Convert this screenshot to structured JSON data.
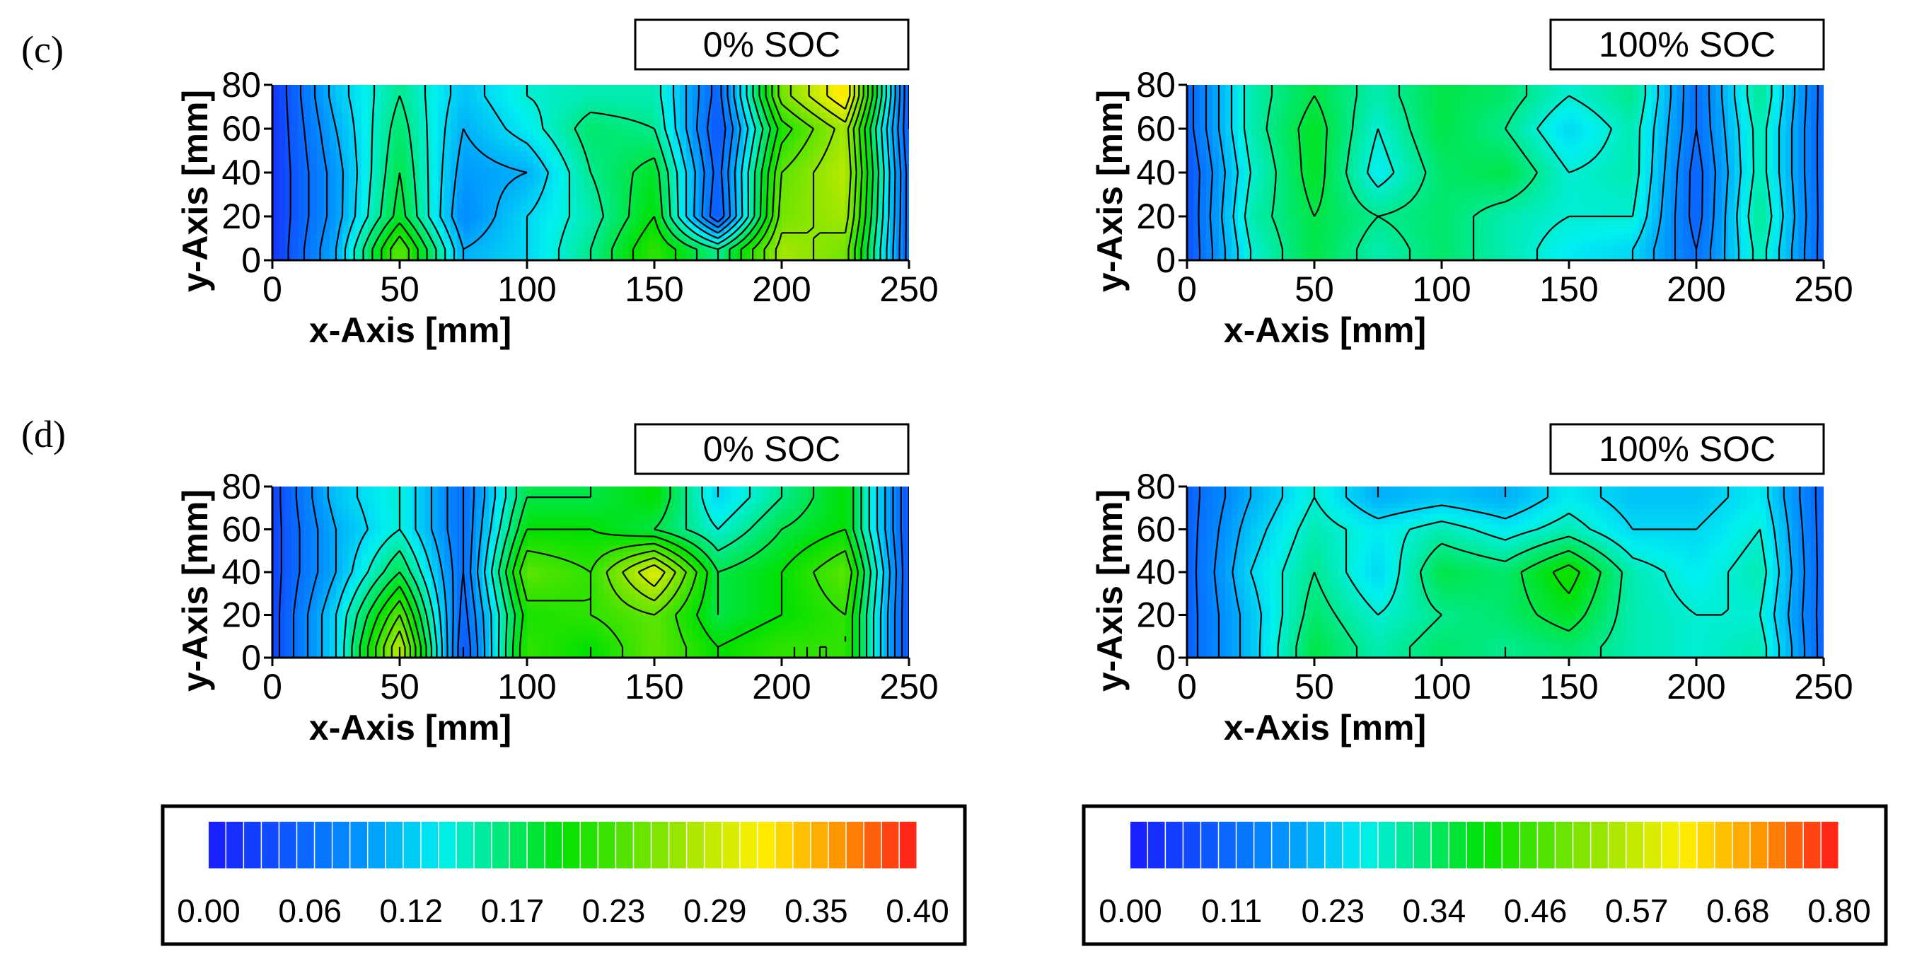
{
  "figure": {
    "panels": [
      {
        "label": "(c)"
      },
      {
        "label": "(d)"
      }
    ],
    "colorbars": [
      {
        "name": "0% SOC scale",
        "min": 0.0,
        "max": 0.4,
        "tick_labels": [
          "0.00",
          "0.06",
          "0.12",
          "0.17",
          "0.23",
          "0.29",
          "0.35",
          "0.40"
        ]
      },
      {
        "name": "100% SOC scale",
        "min": 0.0,
        "max": 0.8,
        "tick_labels": [
          "0.00",
          "0.11",
          "0.23",
          "0.34",
          "0.46",
          "0.57",
          "0.68",
          "0.80"
        ]
      }
    ],
    "colors": {
      "low": "#1a1aff",
      "mid": "#00e000",
      "high": "#ff1a1a",
      "contour": "#000000"
    }
  },
  "chart_data": [
    {
      "type": "heatmap",
      "panel": "(c)",
      "title": "0% SOC",
      "xlabel": "x-Axis [mm]",
      "ylabel": "y-Axis [mm]",
      "xlim": [
        0,
        250
      ],
      "ylim": [
        0,
        80
      ],
      "xticks": [
        "0",
        "50",
        "100",
        "150",
        "200",
        "250"
      ],
      "yticks": [
        "0",
        "20",
        "40",
        "60",
        "80"
      ],
      "x": [
        0,
        25,
        50,
        75,
        100,
        125,
        150,
        175,
        200,
        225,
        250
      ],
      "y": [
        5,
        20,
        40,
        60,
        75
      ],
      "values": [
        [
          0.02,
          0.1,
          0.24,
          0.1,
          0.12,
          0.16,
          0.22,
          0.16,
          0.27,
          0.25,
          0.05
        ],
        [
          0.02,
          0.09,
          0.19,
          0.08,
          0.12,
          0.15,
          0.2,
          0.04,
          0.25,
          0.27,
          0.05
        ],
        [
          0.02,
          0.09,
          0.18,
          0.09,
          0.1,
          0.16,
          0.19,
          0.05,
          0.24,
          0.28,
          0.05
        ],
        [
          0.02,
          0.1,
          0.17,
          0.1,
          0.13,
          0.17,
          0.16,
          0.04,
          0.21,
          0.27,
          0.04
        ],
        [
          0.02,
          0.11,
          0.16,
          0.11,
          0.14,
          0.15,
          0.15,
          0.05,
          0.25,
          0.32,
          0.04
        ]
      ]
    },
    {
      "type": "heatmap",
      "panel": "(c)",
      "title": "100% SOC",
      "xlabel": "x-Axis [mm]",
      "ylabel": "y-Axis [mm]",
      "xlim": [
        0,
        250
      ],
      "ylim": [
        0,
        80
      ],
      "xticks": [
        "0",
        "50",
        "100",
        "150",
        "200",
        "250"
      ],
      "yticks": [
        "0",
        "20",
        "40",
        "60",
        "80"
      ],
      "x": [
        0,
        25,
        50,
        75,
        100,
        125,
        150,
        175,
        200,
        225,
        250
      ],
      "y": [
        5,
        20,
        40,
        60,
        75
      ],
      "values": [
        [
          0.08,
          0.28,
          0.36,
          0.3,
          0.34,
          0.3,
          0.26,
          0.24,
          0.12,
          0.3,
          0.1
        ],
        [
          0.08,
          0.3,
          0.36,
          0.32,
          0.34,
          0.3,
          0.28,
          0.28,
          0.1,
          0.32,
          0.1
        ],
        [
          0.08,
          0.28,
          0.38,
          0.26,
          0.34,
          0.36,
          0.28,
          0.3,
          0.1,
          0.3,
          0.1
        ],
        [
          0.1,
          0.3,
          0.38,
          0.28,
          0.36,
          0.32,
          0.24,
          0.3,
          0.12,
          0.3,
          0.1
        ],
        [
          0.1,
          0.3,
          0.36,
          0.3,
          0.36,
          0.34,
          0.28,
          0.32,
          0.12,
          0.32,
          0.1
        ]
      ]
    },
    {
      "type": "heatmap",
      "panel": "(d)",
      "title": "0% SOC",
      "xlabel": "x-Axis [mm]",
      "ylabel": "y-Axis [mm]",
      "xlim": [
        0,
        250
      ],
      "ylim": [
        0,
        80
      ],
      "xticks": [
        "0",
        "50",
        "100",
        "150",
        "200",
        "250"
      ],
      "yticks": [
        "0",
        "20",
        "40",
        "60",
        "80"
      ],
      "x": [
        0,
        25,
        50,
        75,
        100,
        125,
        150,
        175,
        200,
        225,
        250
      ],
      "y": [
        5,
        20,
        40,
        60,
        75
      ],
      "values": [
        [
          0.03,
          0.12,
          0.28,
          0.04,
          0.22,
          0.2,
          0.24,
          0.2,
          0.22,
          0.22,
          0.04
        ],
        [
          0.03,
          0.12,
          0.24,
          0.05,
          0.21,
          0.22,
          0.24,
          0.18,
          0.2,
          0.22,
          0.04
        ],
        [
          0.03,
          0.1,
          0.18,
          0.06,
          0.24,
          0.22,
          0.3,
          0.18,
          0.2,
          0.24,
          0.04
        ],
        [
          0.03,
          0.1,
          0.14,
          0.06,
          0.2,
          0.2,
          0.18,
          0.14,
          0.18,
          0.2,
          0.04
        ],
        [
          0.03,
          0.11,
          0.14,
          0.06,
          0.18,
          0.18,
          0.2,
          0.12,
          0.16,
          0.2,
          0.04
        ]
      ]
    },
    {
      "type": "heatmap",
      "panel": "(d)",
      "title": "100% SOC",
      "xlabel": "x-Axis [mm]",
      "ylabel": "y-Axis [mm]",
      "xlim": [
        0,
        250
      ],
      "ylim": [
        0,
        80
      ],
      "xticks": [
        "0",
        "50",
        "100",
        "150",
        "200",
        "250"
      ],
      "yticks": [
        "0",
        "20",
        "40",
        "60",
        "80"
      ],
      "x": [
        0,
        25,
        50,
        75,
        100,
        125,
        150,
        175,
        200,
        225,
        250
      ],
      "y": [
        5,
        20,
        40,
        60,
        75
      ],
      "values": [
        [
          0.1,
          0.22,
          0.36,
          0.3,
          0.34,
          0.32,
          0.34,
          0.3,
          0.28,
          0.3,
          0.1
        ],
        [
          0.1,
          0.22,
          0.34,
          0.28,
          0.32,
          0.34,
          0.38,
          0.3,
          0.28,
          0.28,
          0.1
        ],
        [
          0.1,
          0.24,
          0.32,
          0.24,
          0.36,
          0.34,
          0.42,
          0.3,
          0.26,
          0.3,
          0.1
        ],
        [
          0.1,
          0.22,
          0.3,
          0.26,
          0.3,
          0.26,
          0.3,
          0.24,
          0.24,
          0.28,
          0.1
        ],
        [
          0.1,
          0.2,
          0.28,
          0.2,
          0.22,
          0.2,
          0.26,
          0.22,
          0.22,
          0.26,
          0.1
        ]
      ]
    }
  ]
}
